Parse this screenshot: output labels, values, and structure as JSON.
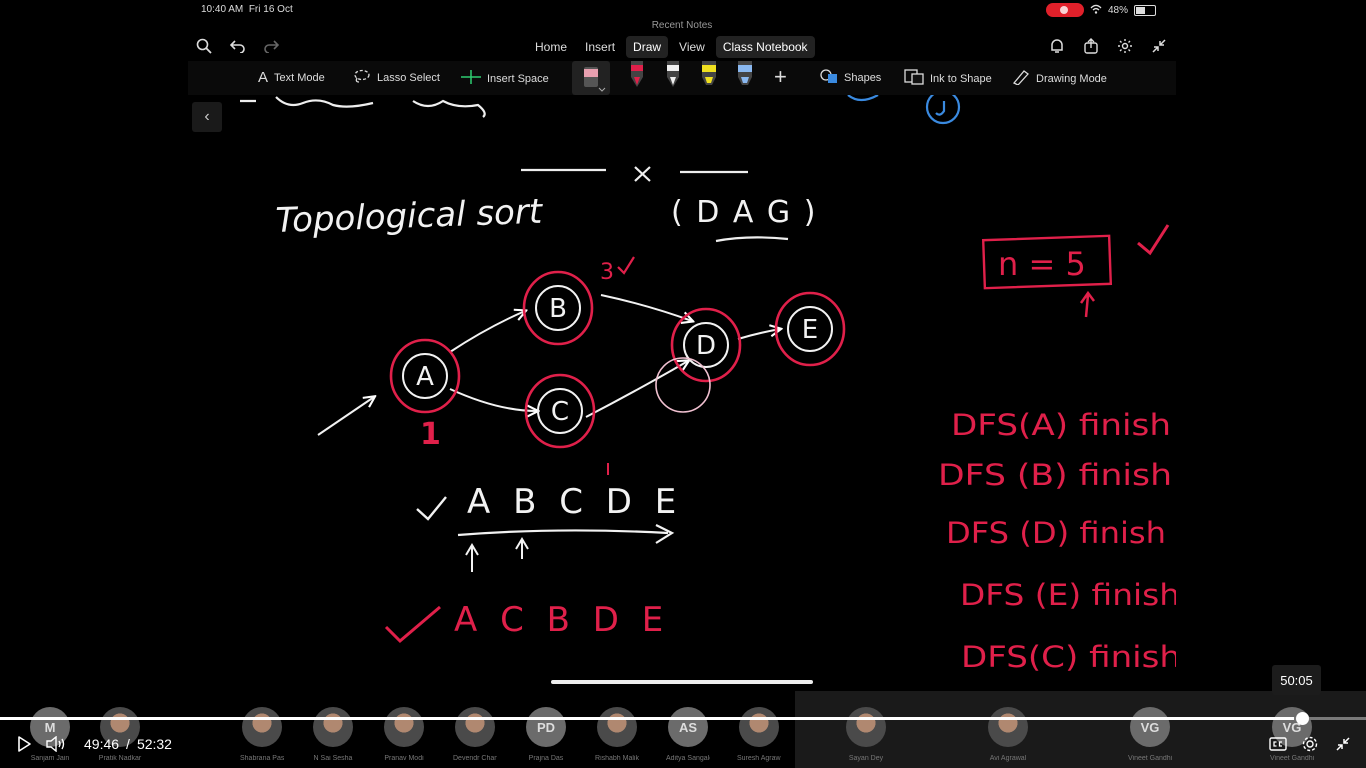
{
  "status_bar": {
    "time": "10:40 AM",
    "date": "Fri 16 Oct",
    "battery": "48%",
    "battery_level": 0.48
  },
  "app": {
    "title": "Recent Notes"
  },
  "ribbon": {
    "tabs": [
      "Home",
      "Insert",
      "Draw",
      "View",
      "Class Notebook"
    ],
    "active_tab": "Draw"
  },
  "toolbar": {
    "text_mode": "Text Mode",
    "lasso_select": "Lasso Select",
    "insert_space": "Insert Space",
    "shapes": "Shapes",
    "ink_to_shape": "Ink to Shape",
    "drawing_mode": "Drawing Mode",
    "pens": [
      {
        "name": "eraser",
        "color": "#e8a0b0"
      },
      {
        "name": "red-pen",
        "color": "#e0204a"
      },
      {
        "name": "white-pen",
        "color": "#f0f0f0"
      },
      {
        "name": "yellow-highlighter",
        "color": "#f0e020"
      },
      {
        "name": "blue-highlighter",
        "color": "#8ab8f0"
      }
    ]
  },
  "note": {
    "heading": "Topological sort",
    "dag": "( D A G )",
    "nodes": [
      "A",
      "B",
      "C",
      "D",
      "E"
    ],
    "labels": {
      "one": "1",
      "three": "3",
      "n_eq": "n = 5"
    },
    "order_1": "A B C D E",
    "order_2": "A C B D E",
    "dfs": [
      "DFS(A) finish",
      "DFS (B) finish",
      "DFS (D) finish",
      "DFS (E) finish",
      "DFS(C) finish"
    ]
  },
  "participants": [
    {
      "initials": "M",
      "name": "Sanjam Jain"
    },
    {
      "initials": "",
      "name": "Pratik Nadkar"
    },
    {
      "initials": "",
      "name": "",
      "dummy": true
    },
    {
      "initials": "",
      "name": "Shabrana Pasala"
    },
    {
      "initials": "",
      "name": "N Sai Sesha"
    },
    {
      "initials": "",
      "name": "Pranav Modi"
    },
    {
      "initials": "",
      "name": "Devendr Chand..."
    },
    {
      "initials": "PD",
      "name": "Prajna Das"
    },
    {
      "initials": "",
      "name": "Rishabh Malik"
    },
    {
      "initials": "AS",
      "name": "Aditya Sangale"
    },
    {
      "initials": "",
      "name": "Suresh Agrawal"
    },
    {
      "initials": "",
      "name": "Sayan Dey"
    },
    {
      "initials": "",
      "name": "Avi Agrawal"
    },
    {
      "initials": "VG",
      "name": "Vineet Gandhi"
    },
    {
      "initials": "VG",
      "name": "Vineet Gandhi"
    }
  ],
  "player": {
    "current_time": "49:46",
    "separator": "/",
    "duration": "52:32",
    "hover_time": "50:05",
    "progress": 0.947,
    "hover_progress": 0.953
  }
}
